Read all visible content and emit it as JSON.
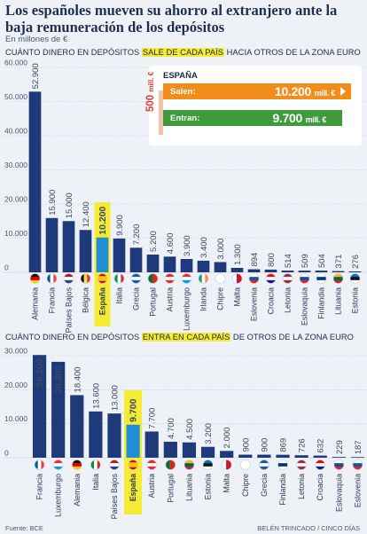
{
  "header": {
    "title": "Los españoles mueven su ahorro al extranjero ante la baja remuneración de los depósitos",
    "unit": "En millones de €"
  },
  "chart1_heading": {
    "pre": "CUÁNTO DINERO EN DEPÓSITOS ",
    "highlight": "SALE DE CADA PAÍS",
    "post": " HACIA OTROS DE LA ZONA EURO"
  },
  "chart2_heading": {
    "pre": "CUÁNTO DINERO EN DEPÓSITOS ",
    "highlight": "ENTRA EN CADA PAÍS",
    "post": " DE OTROS DE LA ZONA EURO"
  },
  "callout": {
    "title": "ESPAÑA",
    "out_label": "Salen:",
    "out_value": "10.200",
    "out_unit": "mill. €",
    "in_label": "Entran:",
    "in_value": "9.700",
    "in_unit": "mill. €",
    "diff_value": "500",
    "diff_unit": "mill. €"
  },
  "footer": {
    "source": "Fuente: BCE",
    "credit": "BELÉN TRINCADO / CINCO DÍAS"
  },
  "colors": {
    "bar": "#1f3a7a",
    "highlight_bar": "#1f8fd6",
    "highlight_label": "#f5ea34",
    "out": "#f28c1a",
    "in": "#3f9a3c",
    "diff": "#e03a2e"
  },
  "chart_data": [
    {
      "type": "bar",
      "categories": [
        "Alemania",
        "Francia",
        "Países Bajos",
        "Bélgica",
        "España",
        "Italia",
        "Grecia",
        "Portugal",
        "Austria",
        "Luxemburgo",
        "Irlanda",
        "Chipre",
        "Malta",
        "Eslovenia",
        "Croacia",
        "Letonia",
        "Eslovaquia",
        "Finlandia",
        "Lituania",
        "Estonia"
      ],
      "labels": [
        "52.900",
        "15.900",
        "15.000",
        "12.400",
        "10.200",
        "9.900",
        "7.200",
        "5.200",
        "4.600",
        "3.900",
        "3.400",
        "3.000",
        "1.300",
        "894",
        "800",
        "514",
        "509",
        "504",
        "371",
        "276"
      ],
      "values": [
        52900,
        15900,
        15000,
        12400,
        10200,
        9900,
        7200,
        5200,
        4600,
        3900,
        3400,
        3000,
        1300,
        894,
        800,
        514,
        509,
        504,
        371,
        276
      ],
      "highlight": "España",
      "yticks": [
        "0",
        "10.000",
        "20.000",
        "30.000",
        "40.000",
        "50.000",
        "60.000"
      ],
      "ytick_values": [
        0,
        10000,
        20000,
        30000,
        40000,
        50000,
        60000
      ],
      "ylim": [
        0,
        60000
      ]
    },
    {
      "type": "bar",
      "categories": [
        "Francia",
        "Luxemburgo",
        "Alemania",
        "Italia",
        "Países Bajos",
        "España",
        "Austria",
        "Portugal",
        "Lituania",
        "Estonia",
        "Malta",
        "Chipre",
        "Grecia",
        "Finlandia",
        "Letonia",
        "Croacia",
        "Eslovaquia",
        "Eslovenia"
      ],
      "labels": [
        "30.200",
        "28.200",
        "18.400",
        "13.600",
        "13.000",
        "9.700",
        "7.700",
        "4.700",
        "4.500",
        "3.200",
        "2.000",
        "900",
        "900",
        "869",
        "726",
        "632",
        "229",
        "187"
      ],
      "values": [
        30200,
        28200,
        18400,
        13600,
        13000,
        9700,
        7700,
        4700,
        4500,
        3200,
        2000,
        900,
        900,
        869,
        726,
        632,
        229,
        187
      ],
      "highlight": "España",
      "yticks": [
        "0",
        "10.000",
        "20.000",
        "30.000"
      ],
      "ytick_values": [
        0,
        10000,
        20000,
        30000
      ],
      "ylim": [
        0,
        30000
      ]
    }
  ]
}
